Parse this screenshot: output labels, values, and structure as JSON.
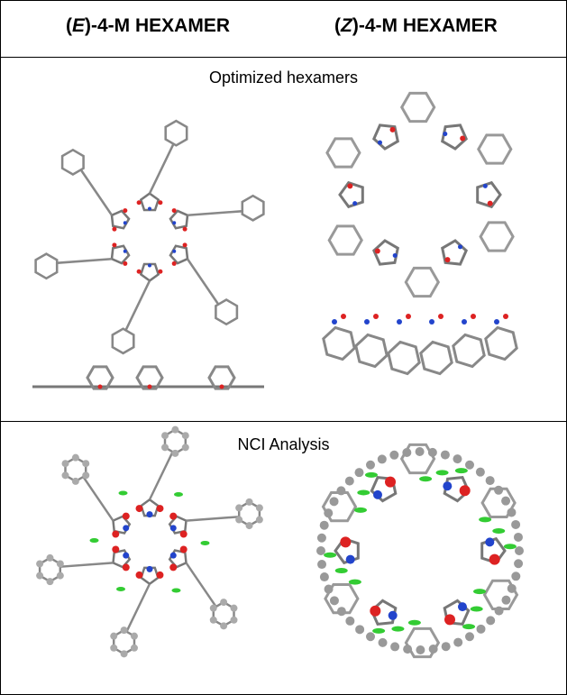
{
  "header": {
    "left": {
      "open": "(",
      "italic": "E",
      "rest": ")-4-M HEXAMER"
    },
    "right": {
      "open": "(",
      "italic": "Z",
      "rest": ")-4-M HEXAMER"
    }
  },
  "rows": [
    {
      "label": "Optimized hexamers"
    },
    {
      "label": "NCI Analysis"
    }
  ]
}
